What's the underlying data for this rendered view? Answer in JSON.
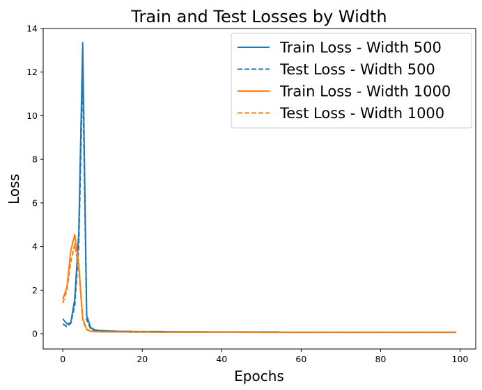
{
  "chart_data": {
    "type": "line",
    "title": "Train and Test Losses by Width",
    "xlabel": "Epochs",
    "ylabel": "Loss",
    "xlim": [
      -4.95,
      103.95
    ],
    "ylim": [
      -0.7,
      14.0
    ],
    "x_ticks": [
      0,
      20,
      40,
      60,
      80,
      100
    ],
    "y_ticks": [
      0,
      2,
      4,
      6,
      8,
      10,
      12,
      14
    ],
    "grid": false,
    "legend_position": "top-right",
    "x": [
      0,
      1,
      2,
      3,
      4,
      5,
      6,
      7,
      8,
      9,
      10,
      11,
      12,
      13,
      14,
      15,
      16,
      17,
      18,
      19,
      20,
      21,
      22,
      23,
      24,
      25,
      26,
      27,
      28,
      29,
      30,
      31,
      32,
      33,
      34,
      35,
      36,
      37,
      38,
      39,
      40,
      41,
      42,
      43,
      44,
      45,
      46,
      47,
      48,
      49,
      50,
      51,
      52,
      53,
      54,
      55,
      56,
      57,
      58,
      59,
      60,
      61,
      62,
      63,
      64,
      65,
      66,
      67,
      68,
      69,
      70,
      71,
      72,
      73,
      74,
      75,
      76,
      77,
      78,
      79,
      80,
      81,
      82,
      83,
      84,
      85,
      86,
      87,
      88,
      89,
      90,
      91,
      92,
      93,
      94,
      95,
      96,
      97,
      98,
      99
    ],
    "series": [
      {
        "name": "Train Loss - Width 500",
        "color": "#1f77b4",
        "dash": "solid",
        "values": [
          0.68,
          0.45,
          0.5,
          1.6,
          4.6,
          13.35,
          0.85,
          0.28,
          0.18,
          0.15,
          0.14,
          0.13,
          0.12,
          0.12,
          0.11,
          0.11,
          0.11,
          0.11,
          0.1,
          0.1,
          0.1,
          0.1,
          0.1,
          0.1,
          0.1,
          0.1,
          0.09,
          0.09,
          0.09,
          0.09,
          0.09,
          0.09,
          0.09,
          0.09,
          0.09,
          0.09,
          0.09,
          0.08,
          0.08,
          0.08,
          0.08,
          0.08,
          0.08,
          0.08,
          0.08,
          0.08,
          0.08,
          0.08,
          0.08,
          0.08,
          0.08,
          0.08,
          0.08,
          0.08,
          0.08,
          0.07,
          0.07,
          0.07,
          0.07,
          0.07,
          0.07,
          0.07,
          0.07,
          0.07,
          0.07,
          0.07,
          0.07,
          0.07,
          0.07,
          0.07,
          0.07,
          0.07,
          0.07,
          0.07,
          0.07,
          0.07,
          0.07,
          0.07,
          0.07,
          0.07,
          0.07,
          0.07,
          0.07,
          0.07,
          0.07,
          0.07,
          0.07,
          0.07,
          0.07,
          0.07,
          0.07,
          0.07,
          0.07,
          0.07,
          0.07,
          0.07,
          0.07,
          0.07,
          0.07,
          0.07
        ]
      },
      {
        "name": "Test Loss - Width 500",
        "color": "#1f77b4",
        "dash": "dashed",
        "values": [
          0.45,
          0.32,
          0.48,
          1.3,
          4.0,
          12.0,
          0.65,
          0.22,
          0.15,
          0.13,
          0.12,
          0.11,
          0.11,
          0.1,
          0.1,
          0.1,
          0.1,
          0.1,
          0.09,
          0.09,
          0.09,
          0.09,
          0.09,
          0.09,
          0.09,
          0.09,
          0.09,
          0.09,
          0.08,
          0.08,
          0.08,
          0.08,
          0.08,
          0.08,
          0.08,
          0.08,
          0.08,
          0.08,
          0.08,
          0.08,
          0.08,
          0.08,
          0.08,
          0.07,
          0.07,
          0.07,
          0.07,
          0.07,
          0.07,
          0.07,
          0.07,
          0.07,
          0.07,
          0.07,
          0.07,
          0.07,
          0.07,
          0.07,
          0.07,
          0.07,
          0.07,
          0.07,
          0.07,
          0.07,
          0.07,
          0.07,
          0.07,
          0.07,
          0.07,
          0.07,
          0.07,
          0.07,
          0.07,
          0.07,
          0.07,
          0.07,
          0.07,
          0.07,
          0.07,
          0.07,
          0.07,
          0.07,
          0.07,
          0.07,
          0.07,
          0.07,
          0.07,
          0.07,
          0.07,
          0.07,
          0.07,
          0.07,
          0.07,
          0.07,
          0.07,
          0.07,
          0.07,
          0.07,
          0.07,
          0.07
        ]
      },
      {
        "name": "Train Loss - Width 1000",
        "color": "#ff7f0e",
        "dash": "solid",
        "values": [
          1.6,
          2.1,
          3.8,
          4.55,
          3.2,
          0.7,
          0.2,
          0.12,
          0.1,
          0.09,
          0.09,
          0.09,
          0.08,
          0.08,
          0.08,
          0.08,
          0.08,
          0.08,
          0.08,
          0.08,
          0.08,
          0.08,
          0.08,
          0.07,
          0.07,
          0.07,
          0.07,
          0.07,
          0.07,
          0.07,
          0.07,
          0.07,
          0.07,
          0.07,
          0.07,
          0.07,
          0.07,
          0.07,
          0.07,
          0.07,
          0.07,
          0.07,
          0.07,
          0.07,
          0.07,
          0.07,
          0.07,
          0.07,
          0.07,
          0.07,
          0.06,
          0.06,
          0.06,
          0.06,
          0.06,
          0.06,
          0.06,
          0.06,
          0.06,
          0.06,
          0.06,
          0.06,
          0.06,
          0.06,
          0.06,
          0.06,
          0.06,
          0.06,
          0.06,
          0.06,
          0.06,
          0.06,
          0.06,
          0.06,
          0.06,
          0.06,
          0.06,
          0.06,
          0.06,
          0.06,
          0.06,
          0.06,
          0.06,
          0.06,
          0.06,
          0.06,
          0.06,
          0.06,
          0.06,
          0.06,
          0.06,
          0.06,
          0.06,
          0.06,
          0.06,
          0.06,
          0.06,
          0.06,
          0.06,
          0.06
        ]
      },
      {
        "name": "Test Loss - Width 1000",
        "color": "#ff7f0e",
        "dash": "dashed",
        "values": [
          1.4,
          2.0,
          3.3,
          4.1,
          3.0,
          0.6,
          0.18,
          0.11,
          0.09,
          0.09,
          0.08,
          0.08,
          0.08,
          0.08,
          0.08,
          0.08,
          0.08,
          0.07,
          0.07,
          0.07,
          0.07,
          0.07,
          0.07,
          0.07,
          0.07,
          0.07,
          0.07,
          0.07,
          0.07,
          0.07,
          0.07,
          0.07,
          0.07,
          0.07,
          0.07,
          0.07,
          0.07,
          0.07,
          0.07,
          0.07,
          0.07,
          0.07,
          0.07,
          0.07,
          0.07,
          0.07,
          0.06,
          0.06,
          0.06,
          0.06,
          0.06,
          0.06,
          0.06,
          0.06,
          0.06,
          0.06,
          0.06,
          0.06,
          0.06,
          0.06,
          0.06,
          0.06,
          0.06,
          0.06,
          0.06,
          0.06,
          0.06,
          0.06,
          0.06,
          0.06,
          0.06,
          0.06,
          0.06,
          0.06,
          0.06,
          0.06,
          0.06,
          0.06,
          0.06,
          0.06,
          0.06,
          0.06,
          0.06,
          0.06,
          0.06,
          0.06,
          0.06,
          0.06,
          0.06,
          0.06,
          0.06,
          0.06,
          0.06,
          0.06,
          0.06,
          0.06,
          0.06,
          0.06,
          0.06,
          0.06
        ]
      }
    ]
  }
}
